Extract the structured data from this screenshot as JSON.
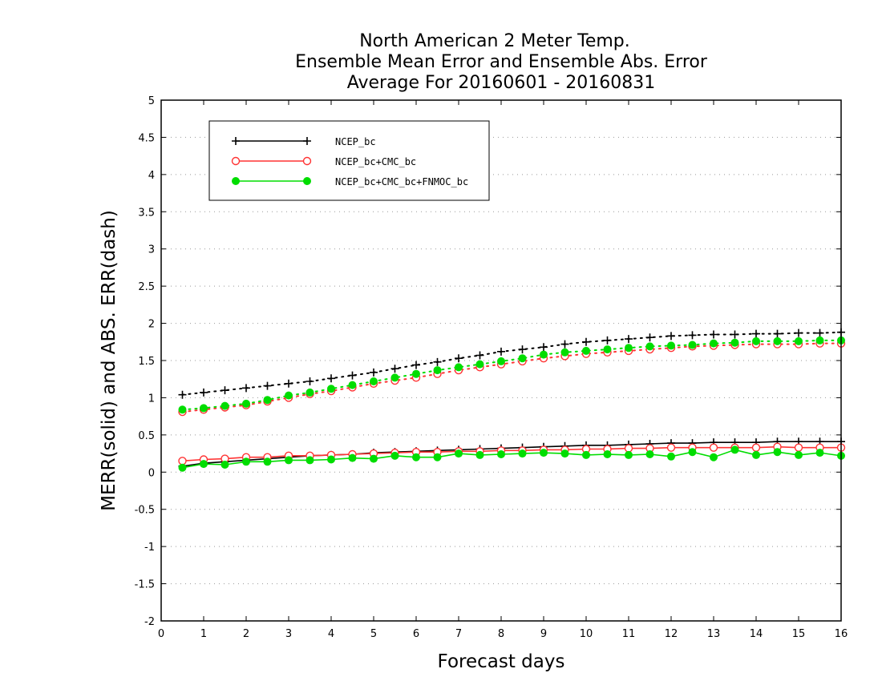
{
  "chart_data": {
    "type": "line",
    "title_lines": [
      "North American 2 Meter Temp.",
      "Ensemble Mean Error and Ensemble Abs. Error",
      "Average For 20160601 - 20160831"
    ],
    "xlabel": "Forecast days",
    "ylabel": "MERR(solid) and ABS. ERR(dash)",
    "xlim": [
      0,
      16
    ],
    "ylim": [
      -2,
      5
    ],
    "xticks": [
      0,
      1,
      2,
      3,
      4,
      5,
      6,
      7,
      8,
      9,
      10,
      11,
      12,
      13,
      14,
      15,
      16
    ],
    "yticks": [
      -2,
      -1.5,
      -1,
      -0.5,
      0,
      0.5,
      1,
      1.5,
      2,
      2.5,
      3,
      3.5,
      4,
      4.5,
      5
    ],
    "ytick_labels": [
      "-2",
      "-1.5",
      "-1",
      "-0.5",
      "0",
      "0.5",
      "1",
      "1.5",
      "2",
      "2.5",
      "3",
      "3.5",
      "4",
      "4.5",
      "5"
    ],
    "grid": "horizontal dotted",
    "legend_position": "top-left",
    "x": [
      0.5,
      1,
      1.5,
      2,
      2.5,
      3,
      3.5,
      4,
      4.5,
      5,
      5.5,
      6,
      6.5,
      7,
      7.5,
      8,
      8.5,
      9,
      9.5,
      10,
      10.5,
      11,
      11.5,
      12,
      12.5,
      13,
      13.5,
      14,
      14.5,
      15,
      15.5,
      16
    ],
    "series": [
      {
        "name": "NCEP_bc",
        "color": "#000000",
        "marker": "plus",
        "merr": [
          0.08,
          0.12,
          0.14,
          0.16,
          0.18,
          0.2,
          0.22,
          0.23,
          0.24,
          0.26,
          0.27,
          0.28,
          0.29,
          0.3,
          0.31,
          0.32,
          0.33,
          0.34,
          0.35,
          0.36,
          0.36,
          0.37,
          0.38,
          0.39,
          0.39,
          0.4,
          0.4,
          0.4,
          0.41,
          0.41,
          0.41,
          0.41
        ],
        "abs_err": [
          1.04,
          1.07,
          1.1,
          1.13,
          1.16,
          1.19,
          1.22,
          1.26,
          1.3,
          1.34,
          1.39,
          1.44,
          1.48,
          1.53,
          1.57,
          1.62,
          1.65,
          1.68,
          1.72,
          1.75,
          1.77,
          1.79,
          1.81,
          1.83,
          1.84,
          1.85,
          1.85,
          1.86,
          1.86,
          1.87,
          1.87,
          1.88
        ]
      },
      {
        "name": "NCEP_bc+CMC_bc",
        "color": "#ff3333",
        "marker": "open-circle",
        "merr": [
          0.15,
          0.17,
          0.18,
          0.2,
          0.2,
          0.22,
          0.22,
          0.23,
          0.24,
          0.25,
          0.26,
          0.27,
          0.27,
          0.28,
          0.28,
          0.29,
          0.29,
          0.3,
          0.3,
          0.31,
          0.31,
          0.32,
          0.32,
          0.33,
          0.33,
          0.33,
          0.33,
          0.33,
          0.34,
          0.33,
          0.33,
          0.33
        ],
        "abs_err": [
          0.81,
          0.84,
          0.87,
          0.9,
          0.95,
          1.0,
          1.05,
          1.09,
          1.14,
          1.19,
          1.23,
          1.27,
          1.32,
          1.37,
          1.41,
          1.45,
          1.49,
          1.53,
          1.56,
          1.59,
          1.61,
          1.63,
          1.65,
          1.67,
          1.69,
          1.7,
          1.71,
          1.72,
          1.72,
          1.72,
          1.73,
          1.73
        ]
      },
      {
        "name": "NCEP_bc+CMC_bc+FNMOC_bc",
        "color": "#00dd00",
        "marker": "filled-circle",
        "merr": [
          0.06,
          0.11,
          0.1,
          0.14,
          0.14,
          0.16,
          0.16,
          0.17,
          0.19,
          0.18,
          0.22,
          0.2,
          0.2,
          0.25,
          0.23,
          0.24,
          0.25,
          0.26,
          0.25,
          0.23,
          0.24,
          0.23,
          0.24,
          0.21,
          0.27,
          0.2,
          0.3,
          0.23,
          0.27,
          0.23,
          0.26,
          0.22
        ],
        "abs_err": [
          0.84,
          0.86,
          0.89,
          0.92,
          0.97,
          1.03,
          1.07,
          1.12,
          1.17,
          1.22,
          1.27,
          1.32,
          1.37,
          1.41,
          1.45,
          1.49,
          1.53,
          1.58,
          1.61,
          1.63,
          1.65,
          1.67,
          1.69,
          1.7,
          1.71,
          1.73,
          1.74,
          1.76,
          1.76,
          1.76,
          1.77,
          1.77
        ]
      }
    ]
  }
}
